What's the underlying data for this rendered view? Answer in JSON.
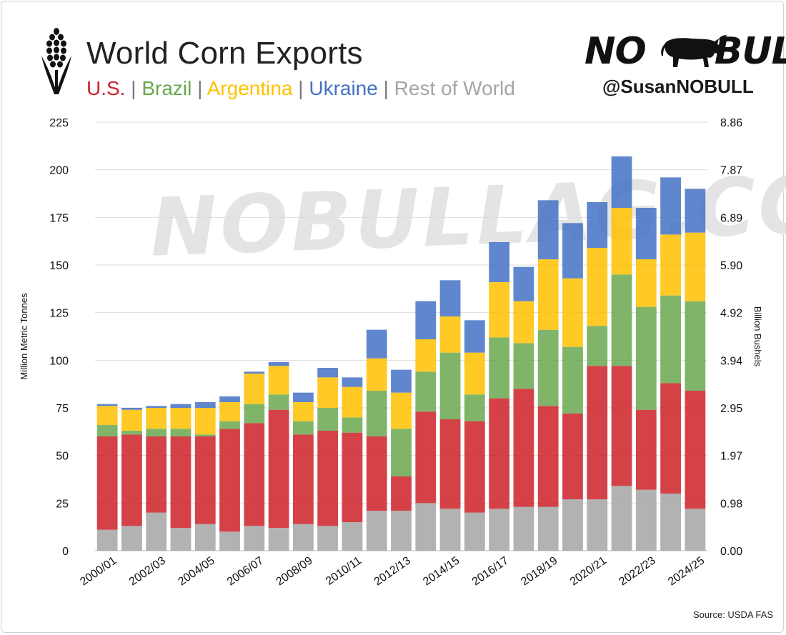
{
  "header": {
    "title": "World Corn Exports",
    "legend": [
      {
        "label": "U.S.",
        "color": "#cc2127"
      },
      {
        "label": "Brazil",
        "color": "#6aa84f"
      },
      {
        "label": "Argentina",
        "color": "#ffc000"
      },
      {
        "label": "Ukraine",
        "color": "#4472c4"
      },
      {
        "label": "Rest of World",
        "color": "#a5a5a5"
      }
    ],
    "separator": "|"
  },
  "branding": {
    "name": "NO BULL",
    "handle": "@SusanNOBULL",
    "watermark": "NOBULLAG.COM",
    "icons": [
      "corn-icon",
      "bull-icon"
    ]
  },
  "footer": {
    "source": "Source: USDA FAS"
  },
  "chart_data": {
    "type": "bar",
    "stacked": true,
    "categories": [
      "2000/01",
      "2001/02",
      "2002/03",
      "2003/04",
      "2004/05",
      "2005/06",
      "2006/07",
      "2007/08",
      "2008/09",
      "2009/10",
      "2010/11",
      "2011/12",
      "2012/13",
      "2013/14",
      "2014/15",
      "2015/16",
      "2016/17",
      "2017/18",
      "2018/19",
      "2019/20",
      "2020/21",
      "2021/22",
      "2022/23",
      "2023/24",
      "2024/25"
    ],
    "tick_labels": [
      "2000/01",
      "2002/03",
      "2004/05",
      "2006/07",
      "2008/09",
      "2010/11",
      "2012/13",
      "2014/15",
      "2016/17",
      "2018/19",
      "2020/21",
      "2022/23",
      "2024/25"
    ],
    "series": [
      {
        "name": "Rest of World",
        "color": "#a5a5a5",
        "values": [
          11,
          13,
          20,
          12,
          14,
          10,
          13,
          12,
          14,
          13,
          15,
          21,
          21,
          25,
          22,
          20,
          22,
          23,
          23,
          27,
          27,
          34,
          32,
          30,
          22
        ]
      },
      {
        "name": "U.S.",
        "color": "#cc2127",
        "values": [
          49,
          48,
          40,
          48,
          46,
          54,
          54,
          62,
          47,
          50,
          47,
          39,
          18,
          48,
          47,
          48,
          58,
          62,
          53,
          45,
          70,
          63,
          42,
          58,
          62
        ]
      },
      {
        "name": "Brazil",
        "color": "#6aa84f",
        "values": [
          6,
          2,
          4,
          4,
          1,
          4,
          10,
          8,
          7,
          12,
          8,
          24,
          25,
          21,
          35,
          14,
          32,
          24,
          40,
          35,
          21,
          48,
          54,
          46,
          47
        ]
      },
      {
        "name": "Argentina",
        "color": "#ffc000",
        "values": [
          10,
          11,
          11,
          11,
          14,
          10,
          16,
          15,
          10,
          16,
          16,
          17,
          19,
          17,
          19,
          22,
          29,
          22,
          37,
          36,
          41,
          35,
          25,
          32,
          36
        ]
      },
      {
        "name": "Ukraine",
        "color": "#4472c4",
        "values": [
          1,
          1,
          1,
          2,
          3,
          3,
          1,
          2,
          5,
          5,
          5,
          15,
          12,
          20,
          19,
          17,
          21,
          18,
          31,
          29,
          24,
          27,
          27,
          30,
          23
        ]
      }
    ],
    "ylabel": "Million Metric Tonnes",
    "ylim": [
      0,
      225
    ],
    "yticks": [
      0,
      25,
      50,
      75,
      100,
      125,
      150,
      175,
      200,
      225
    ],
    "y2label": "Billion Bushels",
    "y2ticks": [
      "0.00",
      "0.98",
      "1.97",
      "2.95",
      "3.94",
      "4.92",
      "5.90",
      "6.89",
      "7.87",
      "8.86"
    ],
    "grid": true,
    "legend_placement": "subtitle"
  }
}
